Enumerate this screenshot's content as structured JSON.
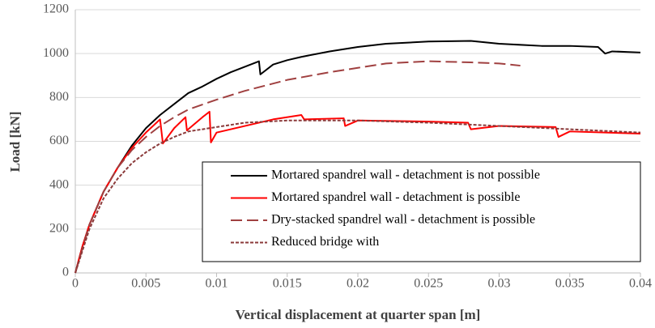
{
  "chart_data": {
    "type": "line",
    "x_label": "Vertical displacement at quarter span [m]",
    "y_label": "Load [kN]",
    "xlim": [
      0,
      0.04
    ],
    "xticks": [
      0,
      0.005,
      0.01,
      0.015,
      0.02,
      0.025,
      0.03,
      0.035,
      0.04
    ],
    "ylim": [
      0,
      1200
    ],
    "yticks": [
      0,
      200,
      400,
      600,
      800,
      1000,
      1200
    ],
    "grid": true,
    "legend": "lower right",
    "series": [
      {
        "name": "Mortared spandrel wall - detachment is not possible",
        "color": "#000000",
        "style": "solid",
        "x": [
          0,
          0.0005,
          0.001,
          0.002,
          0.003,
          0.004,
          0.005,
          0.006,
          0.007,
          0.008,
          0.009,
          0.01,
          0.011,
          0.012,
          0.013,
          0.0131,
          0.014,
          0.015,
          0.016,
          0.018,
          0.02,
          0.022,
          0.025,
          0.028,
          0.03,
          0.033,
          0.035,
          0.037,
          0.0375,
          0.038,
          0.04
        ],
        "values": [
          0,
          120,
          220,
          370,
          480,
          580,
          660,
          720,
          770,
          820,
          850,
          885,
          915,
          940,
          965,
          905,
          950,
          970,
          985,
          1010,
          1030,
          1045,
          1055,
          1058,
          1045,
          1035,
          1035,
          1030,
          1000,
          1010,
          1005
        ]
      },
      {
        "name": "Mortared spandrel wall - detachment is possible",
        "color": "#ff0000",
        "style": "solid",
        "x": [
          0,
          0.0005,
          0.001,
          0.002,
          0.003,
          0.004,
          0.005,
          0.006,
          0.0062,
          0.007,
          0.0078,
          0.0079,
          0.009,
          0.0095,
          0.0096,
          0.01,
          0.012,
          0.014,
          0.016,
          0.0162,
          0.019,
          0.0191,
          0.02,
          0.025,
          0.0278,
          0.028,
          0.03,
          0.034,
          0.0342,
          0.035,
          0.04
        ],
        "values": [
          0,
          120,
          220,
          370,
          480,
          570,
          640,
          700,
          590,
          660,
          710,
          650,
          710,
          735,
          595,
          640,
          670,
          700,
          720,
          700,
          705,
          670,
          695,
          690,
          685,
          655,
          670,
          665,
          620,
          645,
          635
        ]
      },
      {
        "name": "Dry-stacked spandrel wall - detachment is possible",
        "color": "#a04040",
        "style": "dashed",
        "x": [
          0,
          0.001,
          0.002,
          0.003,
          0.004,
          0.005,
          0.006,
          0.007,
          0.008,
          0.01,
          0.012,
          0.015,
          0.018,
          0.02,
          0.022,
          0.025,
          0.028,
          0.03,
          0.0315
        ],
        "values": [
          0,
          220,
          370,
          480,
          560,
          620,
          670,
          710,
          745,
          790,
          830,
          880,
          915,
          935,
          955,
          965,
          960,
          955,
          945
        ]
      },
      {
        "name": "Reduced bridge with",
        "color": "#8b3a3a",
        "style": "dotted",
        "x": [
          0,
          0.001,
          0.002,
          0.003,
          0.004,
          0.005,
          0.006,
          0.007,
          0.008,
          0.01,
          0.012,
          0.015,
          0.02,
          0.025,
          0.03,
          0.035,
          0.04
        ],
        "values": [
          0,
          200,
          340,
          430,
          500,
          550,
          590,
          620,
          645,
          665,
          685,
          695,
          695,
          685,
          670,
          655,
          640
        ]
      }
    ]
  }
}
